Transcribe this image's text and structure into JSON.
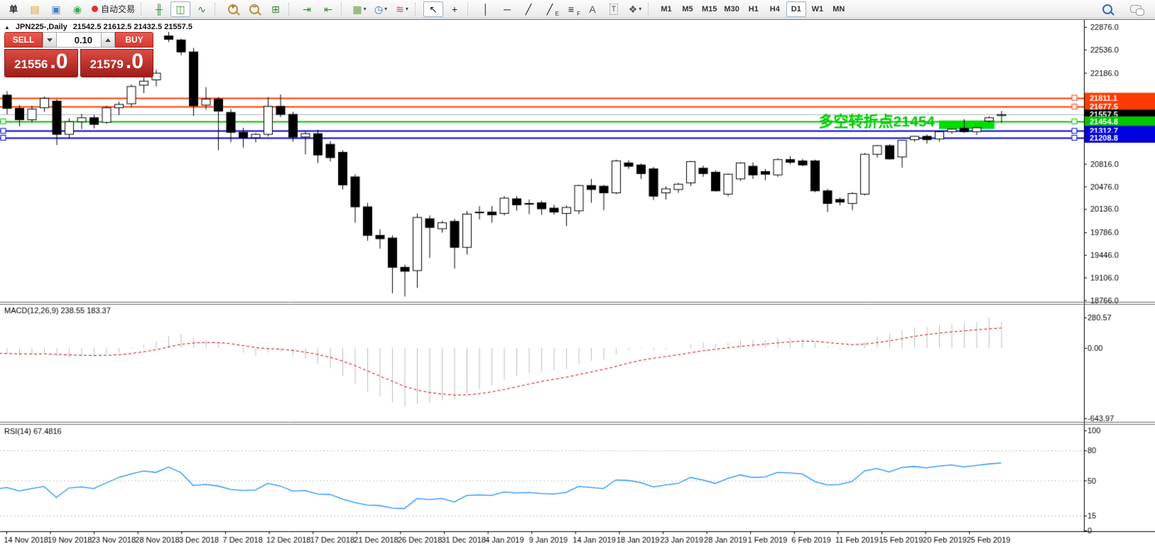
{
  "window": {
    "collapse_icon": "▲",
    "title": "JPN225-,Daily",
    "ohlc": "21542.5 21612.5 21432.5 21557.5"
  },
  "trade_panel": {
    "sell_label": "SELL",
    "buy_label": "BUY",
    "volume": "0.10",
    "sell_price_main": "21556",
    "sell_price_big": ".0",
    "buy_price_main": "21579",
    "buy_price_big": ".0"
  },
  "toolbar": {
    "items": [
      {
        "name": "new-order-button",
        "type": "text",
        "label": "单"
      },
      {
        "name": "chart-history-icon",
        "type": "icon",
        "glyph": "▤",
        "color": "#d9a62e"
      },
      {
        "name": "market-watch-icon",
        "type": "icon",
        "glyph": "▣",
        "color": "#4a7ebb"
      },
      {
        "name": "signals-icon",
        "type": "icon",
        "glyph": "◉",
        "color": "#3aa655"
      },
      {
        "name": "autotrading-button",
        "type": "autotrade",
        "label": "自动交易",
        "dot_color": "#e03030"
      },
      {
        "type": "sep"
      },
      {
        "name": "bar-chart-icon",
        "type": "icon",
        "glyph": "╫",
        "color": "#2e8b2e"
      },
      {
        "name": "candlestick-chart-icon",
        "type": "icon",
        "glyph": "◫",
        "color": "#2e8b2e",
        "pressed": true
      },
      {
        "name": "line-chart-icon",
        "type": "icon",
        "glyph": "∿",
        "color": "#2e8b2e"
      },
      {
        "type": "sep"
      },
      {
        "name": "zoom-in-icon",
        "type": "mag",
        "inner": "+"
      },
      {
        "name": "zoom-out-icon",
        "type": "mag",
        "inner": "−"
      },
      {
        "name": "tile-windows-icon",
        "type": "icon",
        "glyph": "⊞",
        "color": "#3a7f3f"
      },
      {
        "type": "sep"
      },
      {
        "name": "auto-scroll-icon",
        "type": "icon",
        "glyph": "⇥",
        "color": "#2e8b2e"
      },
      {
        "name": "chart-shift-icon",
        "type": "icon",
        "glyph": "⇤",
        "color": "#2e8b2e"
      },
      {
        "type": "sep"
      },
      {
        "name": "templates-icon",
        "type": "icon",
        "glyph": "▦",
        "color": "#6a9a4a",
        "caret": true
      },
      {
        "name": "periods-icon",
        "type": "icon",
        "glyph": "◷",
        "color": "#3a6fbb",
        "caret": true
      },
      {
        "name": "indicators-icon",
        "type": "icon",
        "glyph": "≋",
        "color": "#c05050",
        "caret": true
      },
      {
        "type": "sep"
      },
      {
        "name": "cursor-icon",
        "type": "icon",
        "glyph": "↖",
        "color": "#222222",
        "pressed": true
      },
      {
        "name": "crosshair-icon",
        "type": "icon",
        "glyph": "+",
        "color": "#222222"
      },
      {
        "type": "sep"
      },
      {
        "name": "vertical-line-icon",
        "type": "icon",
        "glyph": "│",
        "color": "#222222"
      },
      {
        "name": "horizontal-line-icon",
        "type": "icon",
        "glyph": "─",
        "color": "#222222"
      },
      {
        "name": "trendline-icon",
        "type": "icon",
        "glyph": "╱",
        "color": "#222222"
      },
      {
        "name": "equidistant-channel-icon",
        "type": "icon",
        "glyph": "╱",
        "sub": "E",
        "color": "#222222"
      },
      {
        "name": "fibonacci-icon",
        "type": "icon",
        "glyph": "≡",
        "sub": "F",
        "color": "#222222"
      },
      {
        "name": "text-icon",
        "type": "icon",
        "glyph": "A",
        "color": "#555555"
      },
      {
        "name": "text-label-icon",
        "type": "icon",
        "glyph": "T",
        "color": "#555555",
        "boxed": true
      },
      {
        "name": "arrows-icon",
        "type": "icon",
        "glyph": "❖",
        "color": "#555555",
        "caret": true
      },
      {
        "type": "sep"
      },
      {
        "name": "timeframe-m1",
        "type": "tf",
        "label": "M1"
      },
      {
        "name": "timeframe-m5",
        "type": "tf",
        "label": "M5"
      },
      {
        "name": "timeframe-m15",
        "type": "tf",
        "label": "M15"
      },
      {
        "name": "timeframe-m30",
        "type": "tf",
        "label": "M30"
      },
      {
        "name": "timeframe-h1",
        "type": "tf",
        "label": "H1"
      },
      {
        "name": "timeframe-h4",
        "type": "tf",
        "label": "H4"
      },
      {
        "name": "timeframe-d1",
        "type": "tf",
        "label": "D1",
        "pressed": true
      },
      {
        "name": "timeframe-w1",
        "type": "tf",
        "label": "W1"
      },
      {
        "name": "timeframe-mn",
        "type": "tf",
        "label": "MN"
      }
    ],
    "right_icons": [
      {
        "name": "search-icon",
        "type": "mag-blue"
      },
      {
        "name": "chat-icon",
        "type": "chat"
      }
    ]
  },
  "chart_data": {
    "type": "candlestick",
    "symbol": "JPN225-",
    "timeframe": "Daily",
    "last_bar": {
      "open": 21542.5,
      "high": 21612.5,
      "low": 21432.5,
      "close": 21557.5
    },
    "colors": {
      "bull": "#ffffff",
      "bear": "#000000",
      "outline": "#000000"
    },
    "ylim": [
      18740,
      22950
    ],
    "main_axis_ticks": [
      22876.0,
      22536.0,
      22186.0,
      20816.0,
      20476.0,
      20136.0,
      19786.0,
      19446.0,
      19106.0,
      18766.0
    ],
    "x_axis_labels": [
      "14 Nov 2018",
      "19 Nov 2018",
      "23 Nov 2018",
      "28 Nov 2018",
      "3 Dec 2018",
      "7 Dec 2018",
      "12 Dec 2018",
      "17 Dec 2018",
      "21 Dec 2018",
      "26 Dec 2018",
      "31 Dec 2018",
      "4 Jan 2019",
      "9 Jan 2019",
      "14 Jan 2019",
      "18 Jan 2019",
      "23 Jan 2019",
      "28 Jan 2019",
      "1 Feb 2019",
      "6 Feb 2019",
      "11 Feb 2019",
      "15 Feb 2019",
      "20 Feb 2019",
      "25 Feb 2019"
    ],
    "hlines": [
      {
        "price": 21811.1,
        "color": "#ff3c00",
        "width": 2,
        "tag_bg": "#ff3c00",
        "right_handle": true,
        "left_handle": false
      },
      {
        "price": 21677.5,
        "color": "#ff3c00",
        "width": 2,
        "tag_bg": "#ff3c00",
        "right_handle": true,
        "left_handle": false
      },
      {
        "price": 21557.5,
        "color": "#b4b4b4",
        "width": 1,
        "tag_bg": "#000000",
        "right_handle": false,
        "left_handle": false,
        "current": true
      },
      {
        "price": 21454.8,
        "color": "#00c400",
        "width": 2,
        "tag_bg": "#00c400",
        "right_handle": true,
        "left_handle": true
      },
      {
        "price": 21312.7,
        "color": "#0000dc",
        "width": 2,
        "tag_bg": "#0000dc",
        "right_handle": true,
        "left_handle": true
      },
      {
        "price": 21208.8,
        "color": "#0000dc",
        "width": 2,
        "tag_bg": "#0000dc",
        "right_handle": true,
        "left_handle": true
      }
    ],
    "annotation": {
      "text": "多空转折点21454",
      "color": "#00cc00",
      "price": 21454.8
    },
    "highlight_box": {
      "bar_start": 76,
      "bar_end": 80,
      "price_top": 21468,
      "price_bottom": 21341,
      "color": "#00dd00"
    },
    "candles": [
      [
        21700,
        21960,
        21480,
        21850
      ],
      [
        21850,
        21910,
        21560,
        21650
      ],
      [
        21650,
        21700,
        21380,
        21480
      ],
      [
        21480,
        21690,
        21440,
        21640
      ],
      [
        21660,
        21830,
        21600,
        21800
      ],
      [
        21760,
        21790,
        21100,
        21260
      ],
      [
        21260,
        21500,
        21200,
        21450
      ],
      [
        21450,
        21570,
        21340,
        21510
      ],
      [
        21510,
        21550,
        21350,
        21410
      ],
      [
        21440,
        21690,
        21420,
        21660
      ],
      [
        21660,
        21750,
        21550,
        21710
      ],
      [
        21720,
        22010,
        21670,
        21980
      ],
      [
        22000,
        22120,
        21880,
        22060
      ],
      [
        22080,
        22230,
        21980,
        22180
      ],
      [
        22740,
        22800,
        22650,
        22690
      ],
      [
        22680,
        22700,
        22450,
        22500
      ],
      [
        22500,
        22560,
        21540,
        21690
      ],
      [
        21700,
        21970,
        21630,
        21790
      ],
      [
        21790,
        21820,
        21020,
        21610
      ],
      [
        21590,
        21640,
        21140,
        21290
      ],
      [
        21290,
        21360,
        21060,
        21210
      ],
      [
        21210,
        21280,
        21140,
        21260
      ],
      [
        21260,
        21820,
        21230,
        21680
      ],
      [
        21680,
        21860,
        21520,
        21560
      ],
      [
        21560,
        21600,
        21150,
        21220
      ],
      [
        21220,
        21300,
        20960,
        21270
      ],
      [
        21270,
        21330,
        20830,
        20950
      ],
      [
        21110,
        21160,
        20850,
        20910
      ],
      [
        20990,
        21020,
        20430,
        20500
      ],
      [
        20620,
        20660,
        19930,
        20170
      ],
      [
        20170,
        20230,
        19660,
        19740
      ],
      [
        19740,
        19830,
        19540,
        19690
      ],
      [
        19700,
        19740,
        18870,
        19260
      ],
      [
        19260,
        19300,
        18820,
        19200
      ],
      [
        19210,
        20070,
        18950,
        20010
      ],
      [
        19990,
        20040,
        19400,
        19860
      ],
      [
        19840,
        19960,
        19780,
        19930
      ],
      [
        19950,
        19990,
        19240,
        19560
      ],
      [
        19560,
        20110,
        19450,
        20060
      ],
      [
        20080,
        20180,
        19980,
        20090
      ],
      [
        20090,
        20180,
        19930,
        20050
      ],
      [
        20070,
        20330,
        20040,
        20300
      ],
      [
        20290,
        20330,
        20110,
        20200
      ],
      [
        20210,
        20280,
        20060,
        20220
      ],
      [
        20230,
        20260,
        20050,
        20140
      ],
      [
        20150,
        20200,
        20050,
        20090
      ],
      [
        20070,
        20190,
        19880,
        20160
      ],
      [
        20110,
        20500,
        20060,
        20490
      ],
      [
        20490,
        20590,
        20230,
        20430
      ],
      [
        20480,
        20500,
        20120,
        20380
      ],
      [
        20380,
        20880,
        20360,
        20860
      ],
      [
        20830,
        20870,
        20740,
        20780
      ],
      [
        20800,
        20820,
        20590,
        20670
      ],
      [
        20740,
        20770,
        20270,
        20330
      ],
      [
        20380,
        20480,
        20280,
        20440
      ],
      [
        20430,
        20530,
        20380,
        20510
      ],
      [
        20530,
        20860,
        20480,
        20850
      ],
      [
        20750,
        20790,
        20620,
        20670
      ],
      [
        20690,
        20720,
        20400,
        20410
      ],
      [
        20360,
        20670,
        20330,
        20660
      ],
      [
        20590,
        20840,
        20560,
        20830
      ],
      [
        20780,
        20840,
        20590,
        20650
      ],
      [
        20700,
        20740,
        20570,
        20660
      ],
      [
        20650,
        20900,
        20620,
        20880
      ],
      [
        20880,
        20930,
        20810,
        20840
      ],
      [
        20860,
        20890,
        20780,
        20800
      ],
      [
        20860,
        20880,
        20390,
        20410
      ],
      [
        20410,
        20440,
        20090,
        20220
      ],
      [
        20280,
        20310,
        20190,
        20240
      ],
      [
        20220,
        20390,
        20120,
        20370
      ],
      [
        20360,
        20980,
        20340,
        20960
      ],
      [
        20960,
        21100,
        20910,
        21090
      ],
      [
        21090,
        21110,
        20880,
        20890
      ],
      [
        20920,
        21180,
        20760,
        21170
      ],
      [
        21180,
        21240,
        21150,
        21230
      ],
      [
        21230,
        21260,
        21120,
        21180
      ],
      [
        21190,
        21310,
        21150,
        21300
      ],
      [
        21300,
        21350,
        21270,
        21340
      ],
      [
        21350,
        21490,
        21280,
        21300
      ],
      [
        21300,
        21370,
        21250,
        21360
      ],
      [
        21460,
        21530,
        21440,
        21510
      ],
      [
        21542.5,
        21612.5,
        21432.5,
        21557.5
      ]
    ],
    "macd": {
      "label": "MACD(12,26,9)",
      "value_main": "238.55",
      "value_signal": "183.37",
      "axis_ticks": [
        280.57,
        0.0,
        -643.97
      ],
      "max": 280.57,
      "min": -643.97,
      "histogram_color": "#bdbdbd",
      "signal_color": "#e00000",
      "histogram": [
        -45,
        -55,
        -65,
        -60,
        -48,
        -75,
        -85,
        -80,
        -78,
        -60,
        -40,
        -5,
        30,
        60,
        110,
        130,
        95,
        75,
        45,
        0,
        -45,
        -70,
        -40,
        -35,
        -70,
        -95,
        -145,
        -185,
        -255,
        -330,
        -400,
        -445,
        -500,
        -540,
        -515,
        -500,
        -480,
        -470,
        -420,
        -375,
        -340,
        -290,
        -255,
        -230,
        -215,
        -205,
        -190,
        -150,
        -120,
        -105,
        -55,
        -20,
        -5,
        -20,
        -15,
        0,
        35,
        50,
        40,
        50,
        70,
        75,
        75,
        90,
        95,
        90,
        55,
        15,
        -10,
        0,
        55,
        105,
        130,
        165,
        190,
        195,
        210,
        220,
        228,
        240,
        280.57,
        238.55
      ],
      "signal": [
        -48,
        -50,
        -53,
        -54,
        -53,
        -57,
        -63,
        -66,
        -68,
        -67,
        -61,
        -50,
        -34,
        -15,
        10,
        34,
        46,
        52,
        50,
        40,
        23,
        5,
        -4,
        -10,
        -22,
        -37,
        -58,
        -84,
        -118,
        -160,
        -208,
        -256,
        -304,
        -352,
        -384,
        -407,
        -421,
        -431,
        -429,
        -418,
        -402,
        -380,
        -355,
        -330,
        -307,
        -286,
        -267,
        -244,
        -219,
        -196,
        -168,
        -138,
        -112,
        -93,
        -78,
        -62,
        -43,
        -24,
        -11,
        1,
        15,
        27,
        36,
        47,
        57,
        63,
        62,
        52,
        40,
        32,
        36,
        50,
        66,
        86,
        107,
        124,
        136,
        148,
        158,
        168,
        176,
        183.37
      ]
    },
    "rsi": {
      "label": "RSI(14)",
      "value": "67.4816",
      "axis_ticks": [
        100,
        80,
        50,
        15,
        0
      ],
      "levels": [
        80,
        50,
        15
      ],
      "range": [
        0,
        100
      ],
      "color": "#1e90ff",
      "values": [
        41,
        43,
        39.5,
        42,
        44,
        33,
        42.5,
        43.5,
        42,
        47.5,
        53,
        56.5,
        59.5,
        58,
        63.4,
        58,
        45,
        46,
        44.5,
        41,
        40,
        40.5,
        47,
        44.5,
        39.5,
        40,
        36.5,
        36,
        31.5,
        28,
        25.5,
        25,
        22.5,
        22,
        32,
        31,
        32,
        28.5,
        35,
        35.5,
        35,
        38.5,
        37.5,
        38,
        37,
        36.5,
        38,
        44,
        43,
        42,
        50.5,
        50,
        48,
        43.5,
        45.5,
        47,
        53,
        50.5,
        47,
        52,
        55.5,
        53,
        53.5,
        58,
        57.5,
        56.5,
        49,
        45.5,
        46,
        49,
        59.5,
        62,
        58.5,
        63,
        64,
        62.5,
        64.5,
        65.5,
        63.5,
        65,
        66.5,
        67.4816
      ]
    }
  }
}
